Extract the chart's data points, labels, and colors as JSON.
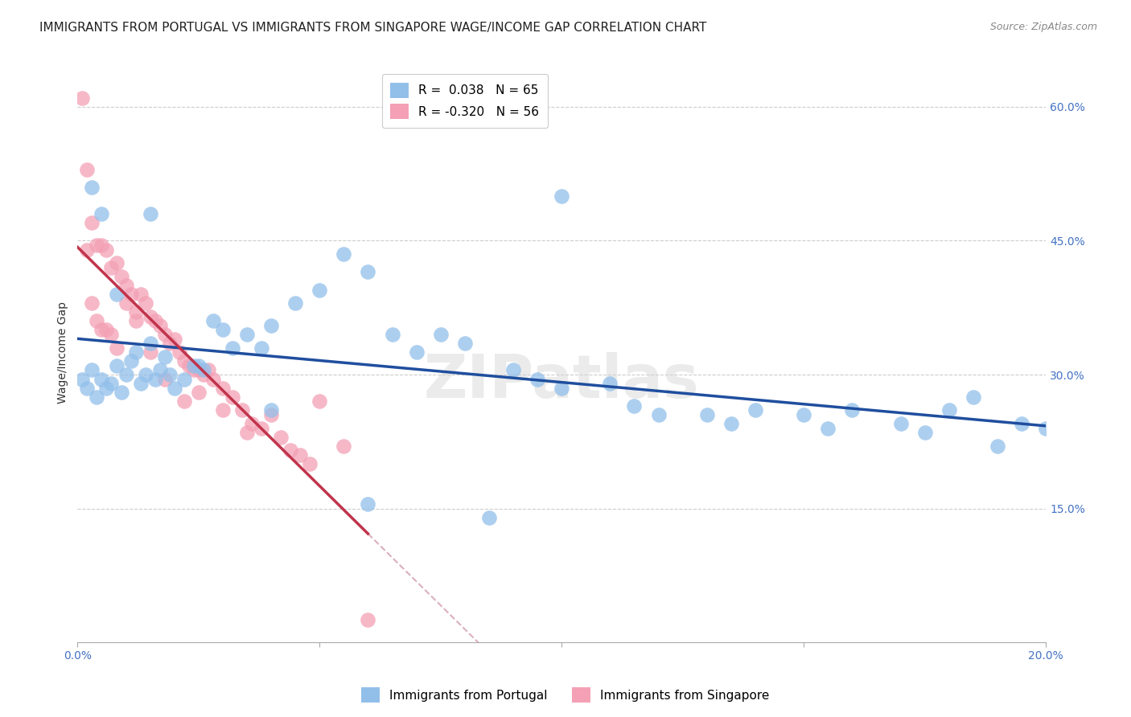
{
  "title": "IMMIGRANTS FROM PORTUGAL VS IMMIGRANTS FROM SINGAPORE WAGE/INCOME GAP CORRELATION CHART",
  "source": "Source: ZipAtlas.com",
  "ylabel": "Wage/Income Gap",
  "r_portugal": 0.038,
  "n_portugal": 65,
  "r_singapore": -0.32,
  "n_singapore": 56,
  "xlim": [
    0.0,
    0.2
  ],
  "ylim": [
    0.0,
    0.65
  ],
  "xticks": [
    0.0,
    0.05,
    0.1,
    0.15,
    0.2
  ],
  "xticklabels": [
    "0.0%",
    "",
    "",
    "",
    "20.0%"
  ],
  "yticks_right": [
    0.15,
    0.3,
    0.45,
    0.6
  ],
  "ytick_labels_right": [
    "15.0%",
    "30.0%",
    "45.0%",
    "60.0%"
  ],
  "color_portugal": "#92BFEA",
  "color_singapore": "#F4A0B5",
  "line_color_portugal": "#1f4e9e",
  "line_color_singapore": "#c0344c",
  "line_color_singapore_dash": "#dbb0bc",
  "background_color": "#ffffff",
  "grid_color": "#cccccc",
  "portugal_x": [
    0.001,
    0.002,
    0.003,
    0.004,
    0.005,
    0.006,
    0.007,
    0.008,
    0.009,
    0.01,
    0.011,
    0.012,
    0.013,
    0.014,
    0.015,
    0.016,
    0.017,
    0.018,
    0.019,
    0.02,
    0.022,
    0.024,
    0.026,
    0.028,
    0.03,
    0.032,
    0.035,
    0.038,
    0.04,
    0.045,
    0.05,
    0.055,
    0.06,
    0.065,
    0.07,
    0.075,
    0.08,
    0.09,
    0.095,
    0.1,
    0.11,
    0.115,
    0.12,
    0.13,
    0.135,
    0.14,
    0.15,
    0.155,
    0.16,
    0.17,
    0.175,
    0.18,
    0.185,
    0.19,
    0.195,
    0.2,
    0.003,
    0.005,
    0.008,
    0.015,
    0.025,
    0.04,
    0.06,
    0.085,
    0.1
  ],
  "portugal_y": [
    0.295,
    0.285,
    0.305,
    0.275,
    0.295,
    0.285,
    0.29,
    0.31,
    0.28,
    0.3,
    0.315,
    0.325,
    0.29,
    0.3,
    0.335,
    0.295,
    0.305,
    0.32,
    0.3,
    0.285,
    0.295,
    0.31,
    0.305,
    0.36,
    0.35,
    0.33,
    0.345,
    0.33,
    0.355,
    0.38,
    0.395,
    0.435,
    0.415,
    0.345,
    0.325,
    0.345,
    0.335,
    0.305,
    0.295,
    0.285,
    0.29,
    0.265,
    0.255,
    0.255,
    0.245,
    0.26,
    0.255,
    0.24,
    0.26,
    0.245,
    0.235,
    0.26,
    0.275,
    0.22,
    0.245,
    0.24,
    0.51,
    0.48,
    0.39,
    0.48,
    0.31,
    0.26,
    0.155,
    0.14,
    0.5
  ],
  "singapore_x": [
    0.001,
    0.002,
    0.003,
    0.004,
    0.005,
    0.006,
    0.007,
    0.008,
    0.009,
    0.01,
    0.011,
    0.012,
    0.013,
    0.014,
    0.015,
    0.016,
    0.017,
    0.018,
    0.019,
    0.02,
    0.021,
    0.022,
    0.023,
    0.024,
    0.025,
    0.026,
    0.027,
    0.028,
    0.03,
    0.032,
    0.034,
    0.036,
    0.038,
    0.04,
    0.042,
    0.044,
    0.046,
    0.048,
    0.05,
    0.055,
    0.002,
    0.003,
    0.004,
    0.005,
    0.006,
    0.007,
    0.008,
    0.01,
    0.012,
    0.015,
    0.018,
    0.022,
    0.025,
    0.03,
    0.035,
    0.06
  ],
  "singapore_y": [
    0.61,
    0.53,
    0.47,
    0.445,
    0.445,
    0.44,
    0.42,
    0.425,
    0.41,
    0.4,
    0.39,
    0.37,
    0.39,
    0.38,
    0.365,
    0.36,
    0.355,
    0.345,
    0.335,
    0.34,
    0.325,
    0.315,
    0.31,
    0.305,
    0.305,
    0.3,
    0.305,
    0.295,
    0.285,
    0.275,
    0.26,
    0.245,
    0.24,
    0.255,
    0.23,
    0.215,
    0.21,
    0.2,
    0.27,
    0.22,
    0.44,
    0.38,
    0.36,
    0.35,
    0.35,
    0.345,
    0.33,
    0.38,
    0.36,
    0.325,
    0.295,
    0.27,
    0.28,
    0.26,
    0.235,
    0.025
  ],
  "sg_line_end_x": 0.06,
  "title_fontsize": 11,
  "axis_label_fontsize": 10,
  "tick_fontsize": 10,
  "legend_fontsize": 11,
  "source_fontsize": 9
}
